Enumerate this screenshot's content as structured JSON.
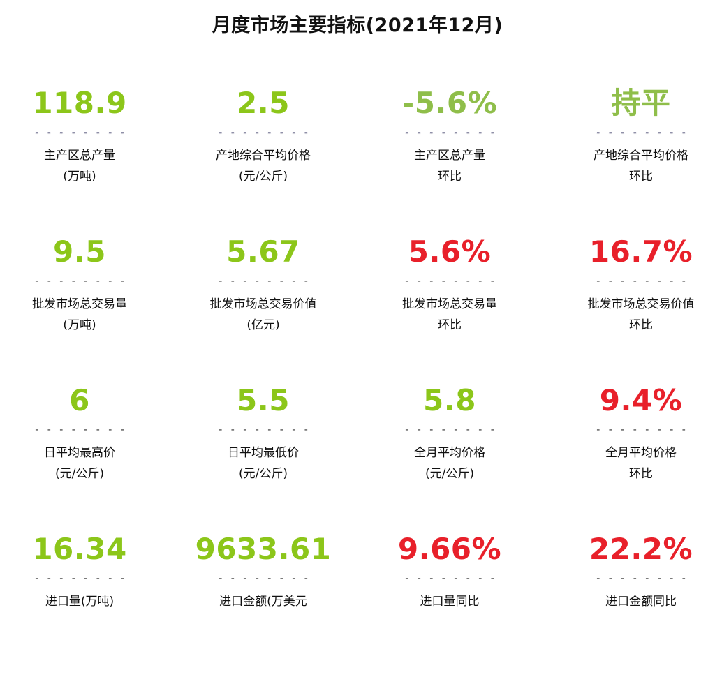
{
  "title": "月度市场主要指标(2021年12月)",
  "colors": {
    "green": "#8cc61a",
    "muted_green": "#8fbe4a",
    "red": "#e8202a"
  },
  "divider": "- - - - - - - -",
  "rows": [
    [
      {
        "value": "118.9",
        "label1": "主产区总产量",
        "label2": "(万吨)",
        "color": "green"
      },
      {
        "value": "2.5",
        "label1": "产地综合平均价格",
        "label2": "(元/公斤)",
        "color": "green"
      },
      {
        "value": "-5.6%",
        "label1": "主产区总产量",
        "label2": "环比",
        "color": "muted_green"
      },
      {
        "value": "持平",
        "label1": "产地综合平均价格",
        "label2": "环比",
        "color": "muted_green"
      }
    ],
    [
      {
        "value": "9.5",
        "label1": "批发市场总交易量",
        "label2": "(万吨)",
        "color": "green"
      },
      {
        "value": "5.67",
        "label1": "批发市场总交易价值",
        "label2": "(亿元)",
        "color": "green"
      },
      {
        "value": "5.6%",
        "label1": "批发市场总交易量",
        "label2": "环比",
        "color": "red"
      },
      {
        "value": "16.7%",
        "label1": "批发市场总交易价值",
        "label2": "环比",
        "color": "red"
      }
    ],
    [
      {
        "value": "6",
        "label1": "日平均最高价",
        "label2": "(元/公斤)",
        "color": "green"
      },
      {
        "value": "5.5",
        "label1": "日平均最低价",
        "label2": "(元/公斤)",
        "color": "green"
      },
      {
        "value": "5.8",
        "label1": "全月平均价格",
        "label2": "(元/公斤)",
        "color": "green"
      },
      {
        "value": "9.4%",
        "label1": "全月平均价格",
        "label2": "环比",
        "color": "red"
      }
    ],
    [
      {
        "value": "16.34",
        "label1": "进口量(万吨)",
        "label2": "",
        "color": "green"
      },
      {
        "value": "9633.61",
        "label1": "进口金额(万美元",
        "label2": "",
        "color": "green"
      },
      {
        "value": "9.66%",
        "label1": "进口量同比",
        "label2": "",
        "color": "red"
      },
      {
        "value": "22.2%",
        "label1": "进口金额同比",
        "label2": "",
        "color": "red"
      }
    ]
  ]
}
